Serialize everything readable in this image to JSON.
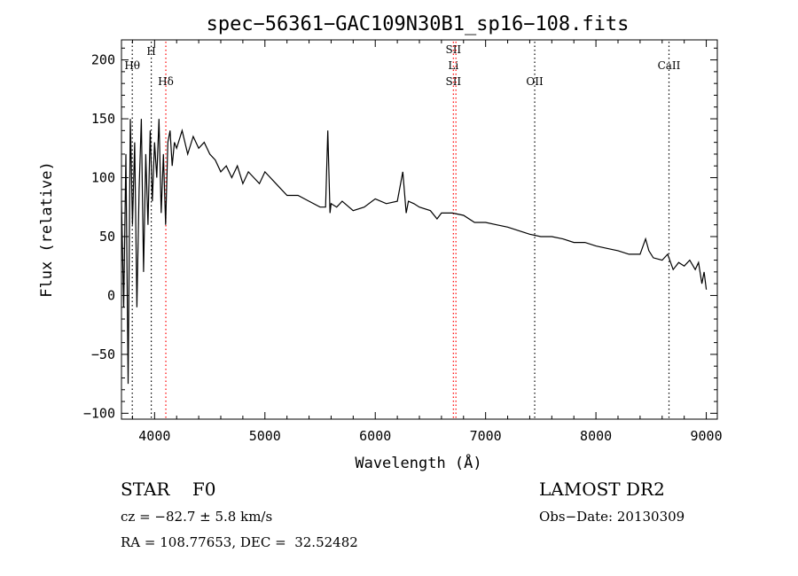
{
  "chart_data": {
    "type": "line",
    "title": "spec−56361−GAC109N30B1_sp16−108.fits",
    "xlabel": "Wavelength (Å)",
    "ylabel": "Flux (relative)",
    "xlim": [
      3700,
      9100
    ],
    "ylim": [
      -105,
      217
    ],
    "xticks": [
      4000,
      5000,
      6000,
      7000,
      8000,
      9000
    ],
    "xtick_labels": [
      "4000",
      "5000",
      "6000",
      "7000",
      "8000",
      "9000"
    ],
    "yticks": [
      -100,
      -50,
      0,
      50,
      100,
      150,
      200
    ],
    "ytick_labels": [
      "−100",
      "−50",
      "0",
      "50",
      "100",
      "150",
      "200"
    ],
    "grid": false,
    "series": [
      {
        "name": "",
        "color": "#000000",
        "x": [
          3700,
          3720,
          3740,
          3760,
          3780,
          3800,
          3820,
          3840,
          3860,
          3880,
          3900,
          3920,
          3940,
          3960,
          3980,
          4000,
          4020,
          4040,
          4060,
          4080,
          4100,
          4120,
          4140,
          4160,
          4180,
          4200,
          4250,
          4300,
          4350,
          4400,
          4450,
          4500,
          4550,
          4600,
          4650,
          4700,
          4750,
          4800,
          4850,
          4900,
          4950,
          5000,
          5100,
          5200,
          5300,
          5400,
          5500,
          5550,
          5570,
          5590,
          5600,
          5650,
          5700,
          5800,
          5900,
          6000,
          6100,
          6200,
          6250,
          6280,
          6300,
          6350,
          6400,
          6500,
          6560,
          6600,
          6700,
          6800,
          6900,
          7000,
          7100,
          7200,
          7300,
          7400,
          7500,
          7600,
          7700,
          7800,
          7900,
          8000,
          8100,
          8200,
          8300,
          8400,
          8450,
          8480,
          8520,
          8600,
          8650,
          8700,
          8750,
          8800,
          8850,
          8900,
          8930,
          8960,
          8980,
          9000
        ],
        "y": [
          80,
          -10,
          120,
          -75,
          150,
          60,
          130,
          -10,
          90,
          150,
          20,
          120,
          60,
          140,
          80,
          130,
          100,
          150,
          70,
          120,
          60,
          130,
          140,
          110,
          130,
          125,
          140,
          120,
          135,
          125,
          130,
          120,
          115,
          105,
          110,
          100,
          110,
          95,
          105,
          100,
          95,
          105,
          95,
          85,
          85,
          80,
          75,
          75,
          140,
          70,
          78,
          75,
          80,
          72,
          75,
          82,
          78,
          80,
          105,
          70,
          80,
          78,
          75,
          72,
          65,
          70,
          70,
          68,
          62,
          62,
          60,
          58,
          55,
          52,
          50,
          50,
          48,
          45,
          45,
          42,
          40,
          38,
          35,
          35,
          48,
          38,
          32,
          30,
          35,
          22,
          28,
          25,
          30,
          22,
          28,
          10,
          20,
          5
        ]
      }
    ],
    "lines": [
      {
        "x": 3798,
        "color": "#000000",
        "labels": [
          "Hθ"
        ]
      },
      {
        "x": 3970,
        "color": "#000000",
        "labels": [
          "H"
        ]
      },
      {
        "x": 4102,
        "color": "#ff0000",
        "labels": [
          "Hδ"
        ]
      },
      {
        "x": 6708,
        "color": "#ff0000",
        "labels": [
          "SII",
          "Li",
          "SII"
        ]
      },
      {
        "x": 6731,
        "color": "#ff0000",
        "labels": []
      },
      {
        "x": 7445,
        "color": "#000000",
        "labels": [
          "OII"
        ]
      },
      {
        "x": 8662,
        "color": "#000000",
        "labels": [
          "CaII"
        ]
      }
    ]
  },
  "info": {
    "classification": "STAR    F0",
    "survey": "LAMOST DR2",
    "cz": "cz = −82.7 ± 5.8 km/s",
    "obs_date": "Obs−Date: 20130309",
    "coords": "RA = 108.77653, DEC =  32.52482"
  }
}
